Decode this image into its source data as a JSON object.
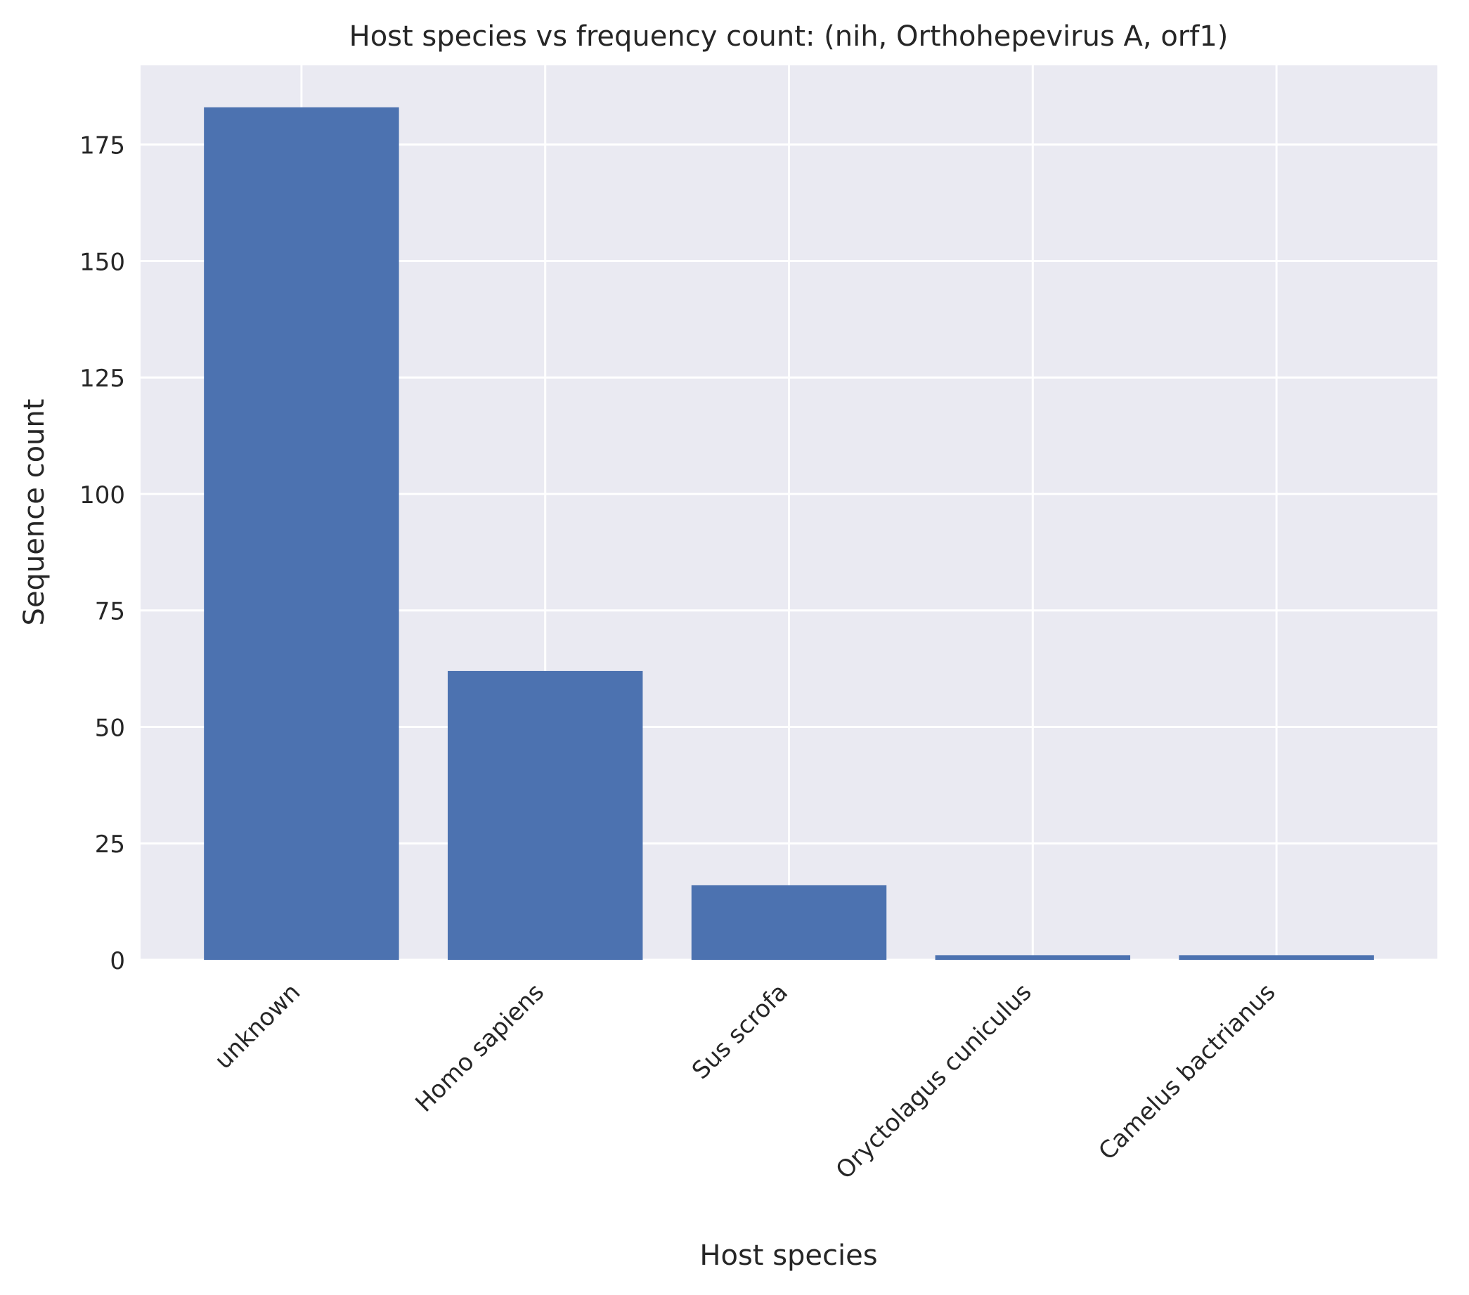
{
  "chart_data": {
    "type": "bar",
    "title": "Host species vs frequency count: (nih, Orthohepevirus A, orf1)",
    "xlabel": "Host species",
    "ylabel": "Sequence count",
    "categories": [
      "unknown",
      "Homo sapiens",
      "Sus scrofa",
      "Oryctolagus cuniculus",
      "Camelus bactrianus"
    ],
    "values": [
      183,
      62,
      16,
      1,
      1
    ],
    "ylim": [
      0,
      192
    ],
    "yticks": [
      0,
      25,
      50,
      75,
      100,
      125,
      150,
      175
    ],
    "grid": true,
    "legend": "none",
    "colors": {
      "bar": "#4c72b0",
      "plot_bg": "#eaeaf2",
      "grid": "#ffffff",
      "text": "#262626"
    }
  }
}
